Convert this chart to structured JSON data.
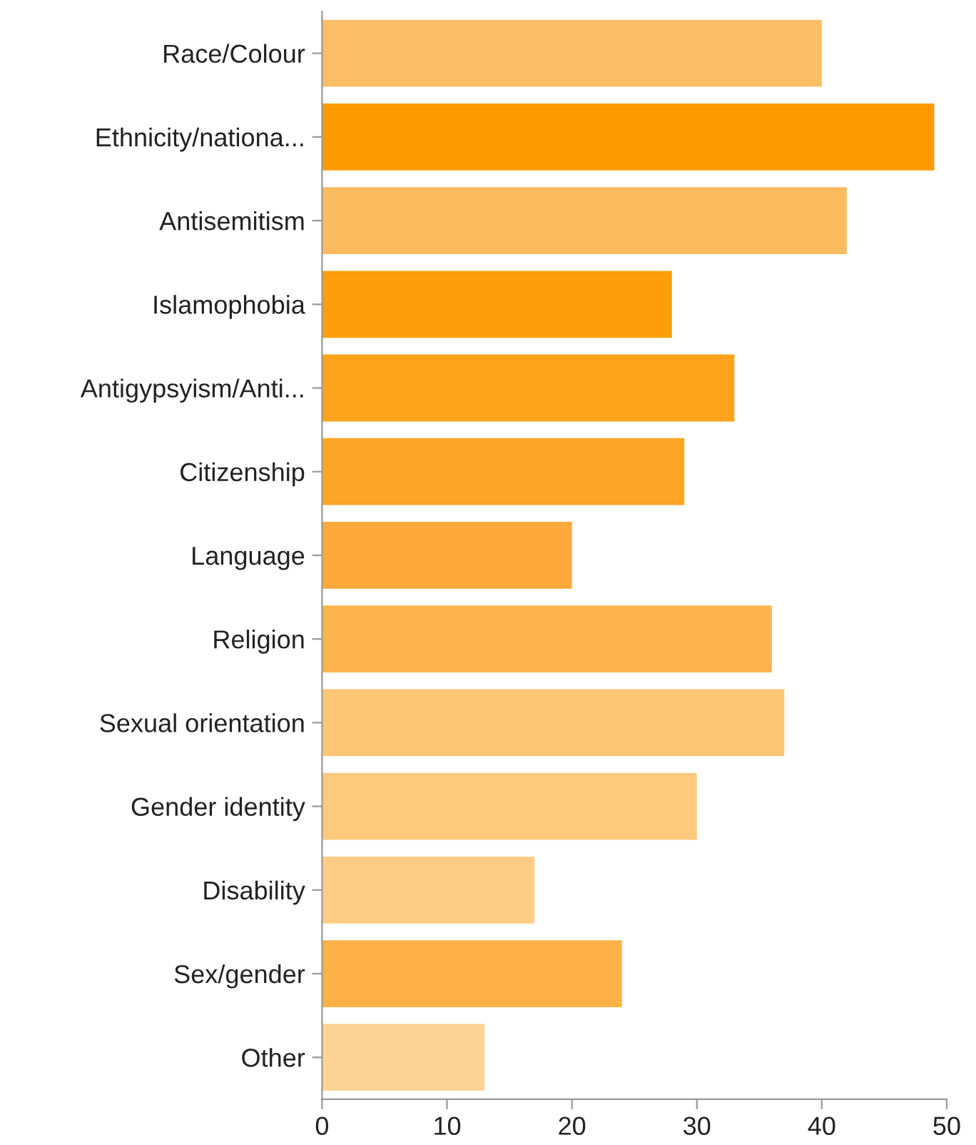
{
  "chart_data": {
    "type": "bar",
    "orientation": "horizontal",
    "categories": [
      "Race/Colour",
      "Ethnicity/nationa...",
      "Antisemitism",
      "Islamophobia",
      "Antigypsyism/Anti...",
      "Citizenship",
      "Language",
      "Religion",
      "Sexual orientation",
      "Gender identity",
      "Disability",
      "Sex/gender",
      "Other"
    ],
    "values": [
      40,
      49,
      42,
      28,
      33,
      29,
      20,
      36,
      37,
      30,
      17,
      24,
      13
    ],
    "colors": [
      "#fdbe68",
      "#fd9a00",
      "#fdbb60",
      "#fd9e0a",
      "#fda41c",
      "#fda526",
      "#fda83a",
      "#fdb44e",
      "#fdc576",
      "#fdc97c",
      "#fdcd88",
      "#fdb146",
      "#fdd396"
    ],
    "xlim": [
      0,
      50
    ],
    "xticks": [
      0,
      10,
      20,
      30,
      40,
      50
    ],
    "grid": false
  }
}
